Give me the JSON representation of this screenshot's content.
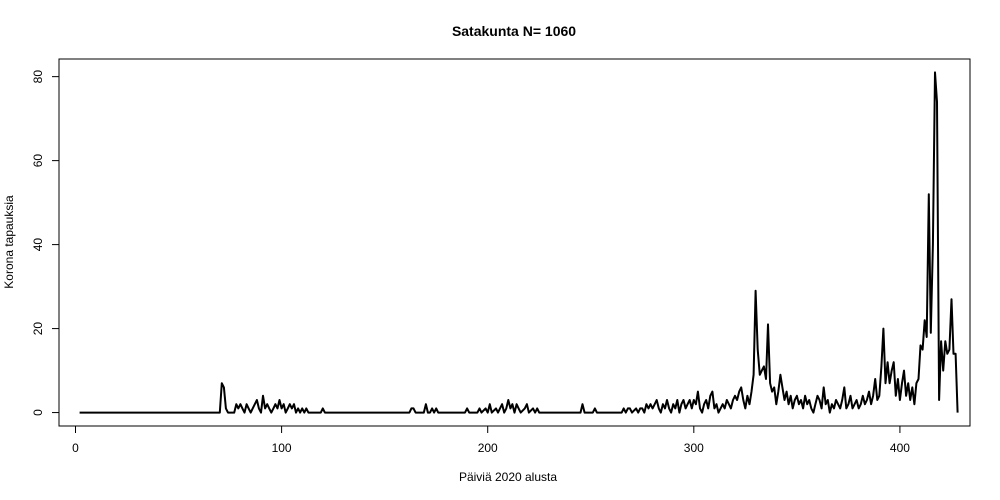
{
  "chart_data": {
    "type": "line",
    "title": "Satakunta N= 1060",
    "xlabel": "Päiviä 2020 alusta",
    "ylabel": "Korona tapauksia",
    "xlim": [
      -8,
      434
    ],
    "ylim": [
      -3.2,
      84.2
    ],
    "xticks": [
      0,
      100,
      200,
      300,
      400
    ],
    "yticks": [
      0,
      20,
      40,
      60,
      80
    ],
    "grid": false,
    "line_color": "#000000",
    "series": [
      {
        "points": [
          [
            2,
            0
          ],
          [
            70,
            0
          ],
          [
            71,
            7
          ],
          [
            72,
            6
          ],
          [
            73,
            1
          ],
          [
            74,
            0
          ],
          [
            77,
            0
          ],
          [
            78,
            2
          ],
          [
            79,
            1
          ],
          [
            80,
            2
          ],
          [
            81,
            1
          ],
          [
            82,
            0
          ],
          [
            83,
            2
          ],
          [
            84,
            1
          ],
          [
            85,
            0
          ],
          [
            86,
            1
          ],
          [
            87,
            2
          ],
          [
            88,
            3
          ],
          [
            89,
            1
          ],
          [
            90,
            0
          ],
          [
            91,
            4
          ],
          [
            92,
            1
          ],
          [
            93,
            2
          ],
          [
            94,
            1
          ],
          [
            95,
            0
          ],
          [
            96,
            1
          ],
          [
            97,
            2
          ],
          [
            98,
            1
          ],
          [
            99,
            3
          ],
          [
            100,
            1
          ],
          [
            101,
            2
          ],
          [
            102,
            0
          ],
          [
            103,
            1
          ],
          [
            104,
            2
          ],
          [
            105,
            1
          ],
          [
            106,
            2
          ],
          [
            107,
            0
          ],
          [
            108,
            1
          ],
          [
            109,
            0
          ],
          [
            110,
            1
          ],
          [
            111,
            0
          ],
          [
            112,
            1
          ],
          [
            113,
            0
          ],
          [
            119,
            0
          ],
          [
            120,
            1
          ],
          [
            121,
            0
          ],
          [
            162,
            0
          ],
          [
            163,
            1
          ],
          [
            164,
            1
          ],
          [
            165,
            0
          ],
          [
            169,
            0
          ],
          [
            170,
            2
          ],
          [
            171,
            0
          ],
          [
            172,
            0
          ],
          [
            173,
            1
          ],
          [
            174,
            0
          ],
          [
            175,
            1
          ],
          [
            176,
            0
          ],
          [
            189,
            0
          ],
          [
            190,
            1
          ],
          [
            191,
            0
          ],
          [
            195,
            0
          ],
          [
            196,
            1
          ],
          [
            197,
            0
          ],
          [
            199,
            1
          ],
          [
            200,
            0
          ],
          [
            201,
            2
          ],
          [
            202,
            0
          ],
          [
            204,
            1
          ],
          [
            205,
            0
          ],
          [
            207,
            2
          ],
          [
            208,
            0
          ],
          [
            209,
            1
          ],
          [
            210,
            3
          ],
          [
            211,
            1
          ],
          [
            212,
            2
          ],
          [
            213,
            0
          ],
          [
            214,
            2
          ],
          [
            215,
            1
          ],
          [
            216,
            0
          ],
          [
            218,
            1
          ],
          [
            219,
            2
          ],
          [
            220,
            0
          ],
          [
            222,
            1
          ],
          [
            223,
            0
          ],
          [
            224,
            1
          ],
          [
            225,
            0
          ],
          [
            245,
            0
          ],
          [
            246,
            2
          ],
          [
            247,
            0
          ],
          [
            251,
            0
          ],
          [
            252,
            1
          ],
          [
            253,
            0
          ],
          [
            265,
            0
          ],
          [
            266,
            1
          ],
          [
            267,
            0
          ],
          [
            268,
            1
          ],
          [
            269,
            1
          ],
          [
            270,
            0
          ],
          [
            272,
            1
          ],
          [
            273,
            0
          ],
          [
            274,
            1
          ],
          [
            275,
            1
          ],
          [
            276,
            0
          ],
          [
            277,
            2
          ],
          [
            278,
            1
          ],
          [
            279,
            2
          ],
          [
            280,
            1
          ],
          [
            281,
            2
          ],
          [
            282,
            3
          ],
          [
            283,
            1
          ],
          [
            284,
            0
          ],
          [
            285,
            2
          ],
          [
            286,
            1
          ],
          [
            287,
            3
          ],
          [
            288,
            1
          ],
          [
            289,
            0
          ],
          [
            290,
            2
          ],
          [
            291,
            1
          ],
          [
            292,
            3
          ],
          [
            293,
            0
          ],
          [
            294,
            2
          ],
          [
            295,
            3
          ],
          [
            296,
            1
          ],
          [
            297,
            2
          ],
          [
            298,
            3
          ],
          [
            299,
            1
          ],
          [
            300,
            3
          ],
          [
            301,
            2
          ],
          [
            302,
            5
          ],
          [
            303,
            1
          ],
          [
            304,
            0
          ],
          [
            305,
            2
          ],
          [
            306,
            3
          ],
          [
            307,
            1
          ],
          [
            308,
            4
          ],
          [
            309,
            5
          ],
          [
            310,
            1
          ],
          [
            311,
            2
          ],
          [
            312,
            0
          ],
          [
            313,
            1
          ],
          [
            314,
            2
          ],
          [
            315,
            1
          ],
          [
            316,
            3
          ],
          [
            317,
            2
          ],
          [
            318,
            1
          ],
          [
            319,
            3
          ],
          [
            320,
            4
          ],
          [
            321,
            3
          ],
          [
            322,
            5
          ],
          [
            323,
            6
          ],
          [
            324,
            3
          ],
          [
            325,
            1
          ],
          [
            326,
            4
          ],
          [
            327,
            2
          ],
          [
            328,
            5
          ],
          [
            329,
            9
          ],
          [
            330,
            29
          ],
          [
            331,
            15
          ],
          [
            332,
            9
          ],
          [
            333,
            10
          ],
          [
            334,
            11
          ],
          [
            335,
            8
          ],
          [
            336,
            21
          ],
          [
            337,
            7
          ],
          [
            338,
            5
          ],
          [
            339,
            6
          ],
          [
            340,
            2
          ],
          [
            341,
            5
          ],
          [
            342,
            9
          ],
          [
            343,
            6
          ],
          [
            344,
            3
          ],
          [
            345,
            5
          ],
          [
            346,
            2
          ],
          [
            347,
            4
          ],
          [
            348,
            1
          ],
          [
            349,
            3
          ],
          [
            350,
            4
          ],
          [
            351,
            2
          ],
          [
            352,
            3
          ],
          [
            353,
            1
          ],
          [
            354,
            4
          ],
          [
            355,
            2
          ],
          [
            356,
            3
          ],
          [
            357,
            1
          ],
          [
            358,
            0
          ],
          [
            359,
            2
          ],
          [
            360,
            4
          ],
          [
            361,
            3
          ],
          [
            362,
            1
          ],
          [
            363,
            6
          ],
          [
            364,
            2
          ],
          [
            365,
            3
          ],
          [
            366,
            0
          ],
          [
            367,
            2
          ],
          [
            368,
            1
          ],
          [
            369,
            3
          ],
          [
            370,
            2
          ],
          [
            371,
            1
          ],
          [
            372,
            3
          ],
          [
            373,
            6
          ],
          [
            374,
            1
          ],
          [
            375,
            2
          ],
          [
            376,
            4
          ],
          [
            377,
            1
          ],
          [
            378,
            2
          ],
          [
            379,
            3
          ],
          [
            380,
            1
          ],
          [
            381,
            2
          ],
          [
            382,
            4
          ],
          [
            383,
            2
          ],
          [
            384,
            3
          ],
          [
            385,
            5
          ],
          [
            386,
            2
          ],
          [
            387,
            4
          ],
          [
            388,
            8
          ],
          [
            389,
            3
          ],
          [
            390,
            4
          ],
          [
            391,
            11
          ],
          [
            392,
            20
          ],
          [
            393,
            7
          ],
          [
            394,
            12
          ],
          [
            395,
            7
          ],
          [
            396,
            10
          ],
          [
            397,
            12
          ],
          [
            398,
            4
          ],
          [
            399,
            8
          ],
          [
            400,
            3
          ],
          [
            401,
            7
          ],
          [
            402,
            10
          ],
          [
            403,
            4
          ],
          [
            404,
            7
          ],
          [
            405,
            3
          ],
          [
            406,
            6
          ],
          [
            407,
            2
          ],
          [
            408,
            7
          ],
          [
            409,
            8
          ],
          [
            410,
            16
          ],
          [
            411,
            15
          ],
          [
            412,
            22
          ],
          [
            413,
            18
          ],
          [
            414,
            52
          ],
          [
            415,
            19
          ],
          [
            416,
            40
          ],
          [
            417,
            81
          ],
          [
            418,
            74
          ],
          [
            419,
            3
          ],
          [
            420,
            17
          ],
          [
            421,
            10
          ],
          [
            422,
            17
          ],
          [
            423,
            14
          ],
          [
            424,
            15
          ],
          [
            425,
            27
          ],
          [
            426,
            14
          ],
          [
            427,
            14
          ],
          [
            428,
            0
          ]
        ]
      }
    ]
  }
}
